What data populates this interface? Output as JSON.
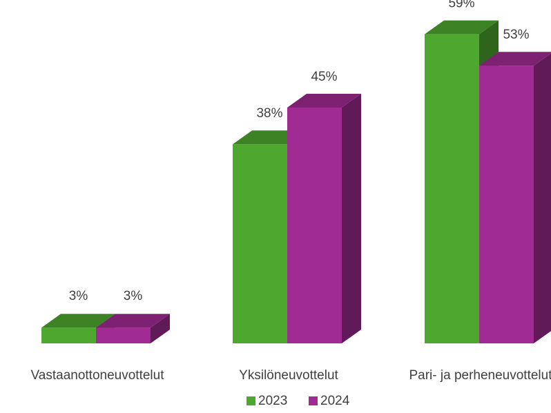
{
  "chart_data": {
    "type": "bar3d",
    "categories": [
      "Vastaanottoneuvottelut",
      "Yksilöneuvottelut",
      "Pari- ja perheneuvottelut"
    ],
    "series": [
      {
        "name": "2023",
        "color": "#4ea72e",
        "values": [
          3,
          38,
          59
        ],
        "value_labels": [
          "3%",
          "38%",
          "59%"
        ]
      },
      {
        "name": "2024",
        "color": "#a02b93",
        "values": [
          3,
          45,
          53
        ],
        "value_labels": [
          "3%",
          "45%",
          "53%"
        ]
      }
    ],
    "legend": "bottom"
  }
}
